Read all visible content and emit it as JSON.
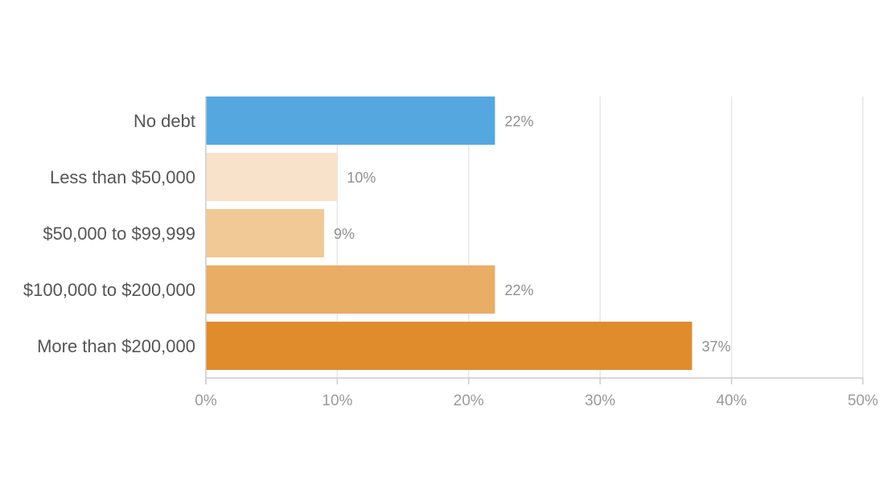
{
  "chart_data": {
    "type": "bar",
    "orientation": "horizontal",
    "categories": [
      "No debt",
      "Less than $50,000",
      "$50,000 to $99,999",
      "$100,000 to $200,000",
      "More than $200,000"
    ],
    "values": [
      22,
      10,
      9,
      22,
      37
    ],
    "value_labels": [
      "22%",
      "10%",
      "9%",
      "22%",
      "37%"
    ],
    "bar_colors": [
      "#54a8df",
      "#f8e2c9",
      "#f0c996",
      "#e9ad66",
      "#e08c2d"
    ],
    "xlim": [
      0,
      50
    ],
    "x_ticks": [
      0,
      10,
      20,
      30,
      40,
      50
    ],
    "x_tick_labels": [
      "0%",
      "10%",
      "20%",
      "30%",
      "40%",
      "50%"
    ],
    "grid": "vertical gridlines",
    "legend": "none",
    "title": "",
    "xlabel": "",
    "ylabel": ""
  }
}
